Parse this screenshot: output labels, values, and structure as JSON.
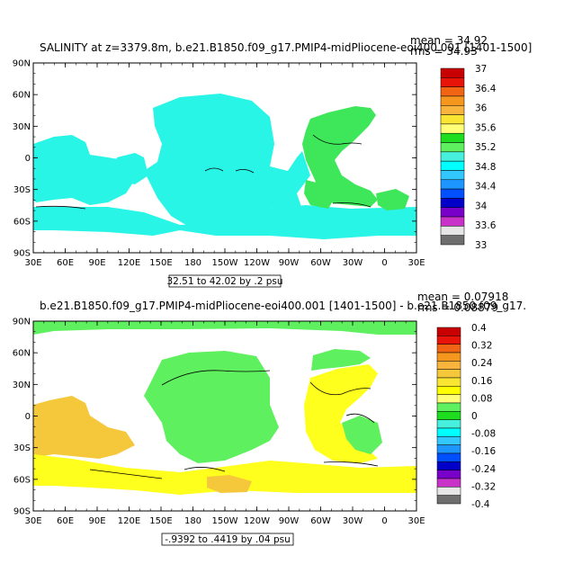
{
  "chart_data": [
    {
      "type": "heatmap",
      "title": "SALINITY at z=3379.8m, b.e21.B1850.f09_g17.PMIP4-midPliocene-eoi400.001 [1401-1500]",
      "stat_top": "mean = 34.92",
      "stat_bottom": "rms = 34.93",
      "range_label": "32.51 to 42.02 by .2 psu",
      "x_ticks": [
        "30E",
        "60E",
        "90E",
        "120E",
        "150E",
        "180",
        "150W",
        "120W",
        "90W",
        "60W",
        "30W",
        "0",
        "30E"
      ],
      "y_ticks": [
        "90N",
        "60N",
        "30N",
        "0",
        "30S",
        "60S",
        "90S"
      ],
      "colorbar_labels": [
        "37",
        "36.4",
        "36",
        "35.6",
        "35.2",
        "34.8",
        "34.4",
        "34",
        "33.6",
        "33"
      ],
      "colorbar_colors": [
        "#c80000",
        "#e8140a",
        "#f06414",
        "#f5961e",
        "#f8b43c",
        "#fae632",
        "#ffff78",
        "#1edc1e",
        "#5ff05f",
        "#46f0dc",
        "#00ffff",
        "#32c8ff",
        "#1e96ff",
        "#0050ff",
        "#0000c8",
        "#7800c8",
        "#c832c8",
        "#e6e6e6",
        "#6e6e6e"
      ]
    },
    {
      "type": "heatmap",
      "title": "b.e21.B1850.f09_g17.PMIP4-midPliocene-eoi400.001 [1401-1500] - b.e21.B1850.f09_g17.",
      "stat_top": "mean = 0.07918",
      "stat_bottom": "rms = 0.08879",
      "range_label": "-.9392 to .4419 by .04 psu",
      "x_ticks": [
        "30E",
        "60E",
        "90E",
        "120E",
        "150E",
        "180",
        "150W",
        "120W",
        "90W",
        "60W",
        "30W",
        "0",
        "30E"
      ],
      "y_ticks": [
        "90N",
        "60N",
        "30N",
        "0",
        "30S",
        "60S",
        "90S"
      ],
      "colorbar_labels": [
        "0.4",
        "0.32",
        "0.24",
        "0.16",
        "0.08",
        "0",
        "-0.08",
        "-0.16",
        "-0.24",
        "-0.32",
        "-0.4"
      ],
      "colorbar_colors": [
        "#c80000",
        "#e8140a",
        "#f06414",
        "#f5961e",
        "#f8b43c",
        "#f5c83c",
        "#fae632",
        "#ffff00",
        "#ffff78",
        "#5ff05f",
        "#1edc1e",
        "#46f0dc",
        "#00ffff",
        "#32c8ff",
        "#1e96ff",
        "#0050ff",
        "#0000c8",
        "#7800c8",
        "#c832c8",
        "#e6e6e6",
        "#6e6e6e"
      ]
    }
  ]
}
